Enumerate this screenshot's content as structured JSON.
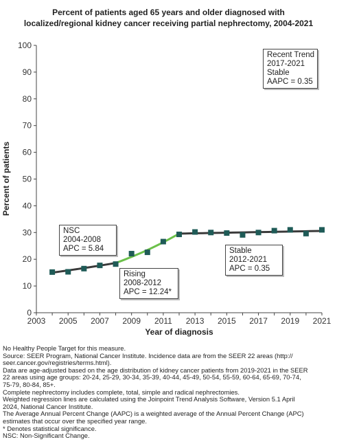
{
  "chart_data": {
    "type": "line",
    "title_lines": [
      "Percent of patients aged 65 years and older diagnosed with",
      "localized/regional kidney cancer receiving partial nephrectomy, 2004-2021"
    ],
    "xlabel": "Year of diagnosis",
    "ylabel": "Percent of patients",
    "xlim": [
      2003,
      2021
    ],
    "ylim": [
      0,
      100
    ],
    "x_ticks": [
      2003,
      2005,
      2007,
      2009,
      2011,
      2013,
      2015,
      2017,
      2019,
      2021
    ],
    "y_ticks": [
      0,
      10,
      20,
      30,
      40,
      50,
      60,
      70,
      80,
      90,
      100
    ],
    "grid": false,
    "observed": {
      "x": [
        2004,
        2005,
        2006,
        2007,
        2008,
        2009,
        2010,
        2011,
        2012,
        2013,
        2014,
        2015,
        2016,
        2017,
        2018,
        2019,
        2020,
        2021
      ],
      "y": [
        15.2,
        15.3,
        16.5,
        17.7,
        18.2,
        22.1,
        22.6,
        26.6,
        29.3,
        30.2,
        30.0,
        29.8,
        29.1,
        30.0,
        30.7,
        31.0,
        29.6,
        31.0
      ]
    },
    "trend_segments": [
      {
        "x_start": 2004,
        "x_end": 2008,
        "y_start": 15.0,
        "y_end": 18.6,
        "color": "#3a3a3a",
        "label": [
          "NSC",
          "2004-2008",
          "APC =  5.84"
        ]
      },
      {
        "x_start": 2008,
        "x_end": 2012,
        "y_start": 18.6,
        "y_end": 29.6,
        "color": "#6cc04a",
        "label": [
          "Rising",
          "2008-2012",
          "APC = 12.24*"
        ]
      },
      {
        "x_start": 2012,
        "x_end": 2021,
        "y_start": 29.6,
        "y_end": 30.6,
        "color": "#3a3a3a",
        "label": [
          "Stable",
          "2012-2021",
          "APC =  0.35"
        ]
      }
    ],
    "recent_trend": [
      "Recent Trend",
      "2017-2021",
      "Stable",
      "AAPC =  0.35"
    ],
    "colors": {
      "marker": "#1f5b57",
      "line_dark": "#3a3a3a",
      "line_rising": "#6cc04a",
      "axis": "#444444"
    }
  },
  "footnotes": [
    "No Healthy People Target for this measure.",
    "Source: SEER Program, National Cancer Institute. Incidence data are from the SEER 22 areas (http://",
    "seer.cancer.gov/registries/terms.html).",
    "Data are age-adjusted based on the age distribution of kidney cancer patients from 2019-2021 in the SEER",
    "22 areas using age groups: 20-24, 25-29, 30-34, 35-39, 40-44, 45-49, 50-54, 55-59, 60-64, 65-69, 70-74,",
    "75-79, 80-84, 85+.",
    "Complete nephrectomy includes complete, total, simple and radical nephrectomies.",
    "Weighted regression lines are calculated using the Joinpoint Trend Analysis Software, Version 5.1 April",
    "2024, National Cancer Institute.",
    "The Average Annual Percent Change (AAPC) is a weighted average of the Annual Percent Change (APC)",
    "estimates that occur over the specified year range.",
    "* Denotes statistical significance.",
    "NSC: Non-Significant Change."
  ]
}
